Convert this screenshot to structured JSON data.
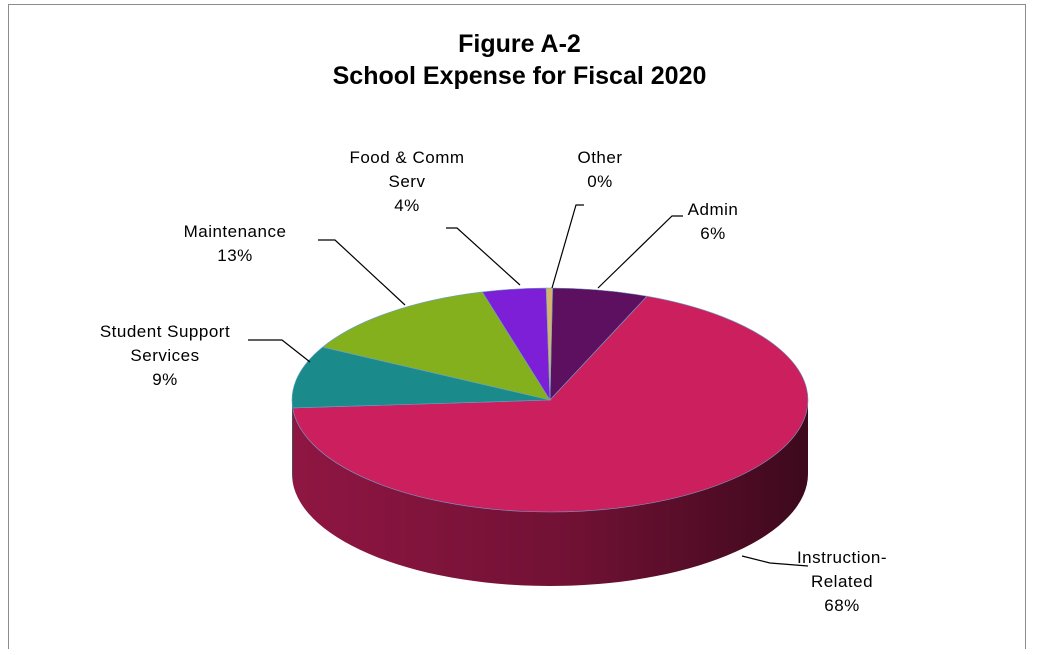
{
  "chart_data": {
    "type": "pie",
    "title": "Figure A-2",
    "subtitle": "School Expense for Fiscal 2020",
    "unit": "%",
    "slices": [
      {
        "label_lines": [
          "Instruction-",
          "Related"
        ],
        "pct_label": "68%",
        "value": 68,
        "color": "#cc1f5e"
      },
      {
        "label_lines": [
          "Student Support",
          "Services"
        ],
        "pct_label": "9%",
        "value": 9,
        "color": "#1a8a8a"
      },
      {
        "label_lines": [
          "Maintenance"
        ],
        "pct_label": "13%",
        "value": 13,
        "color": "#84b01e"
      },
      {
        "label_lines": [
          "Food & Comm",
          "Serv"
        ],
        "pct_label": "4%",
        "value": 4,
        "color": "#7c1fd6"
      },
      {
        "label_lines": [
          "Other"
        ],
        "pct_label": "0%",
        "value": 0.4,
        "color": "#d8b46a"
      },
      {
        "label_lines": [
          "Admin"
        ],
        "pct_label": "6%",
        "value": 6,
        "color": "#5e1060"
      }
    ]
  }
}
